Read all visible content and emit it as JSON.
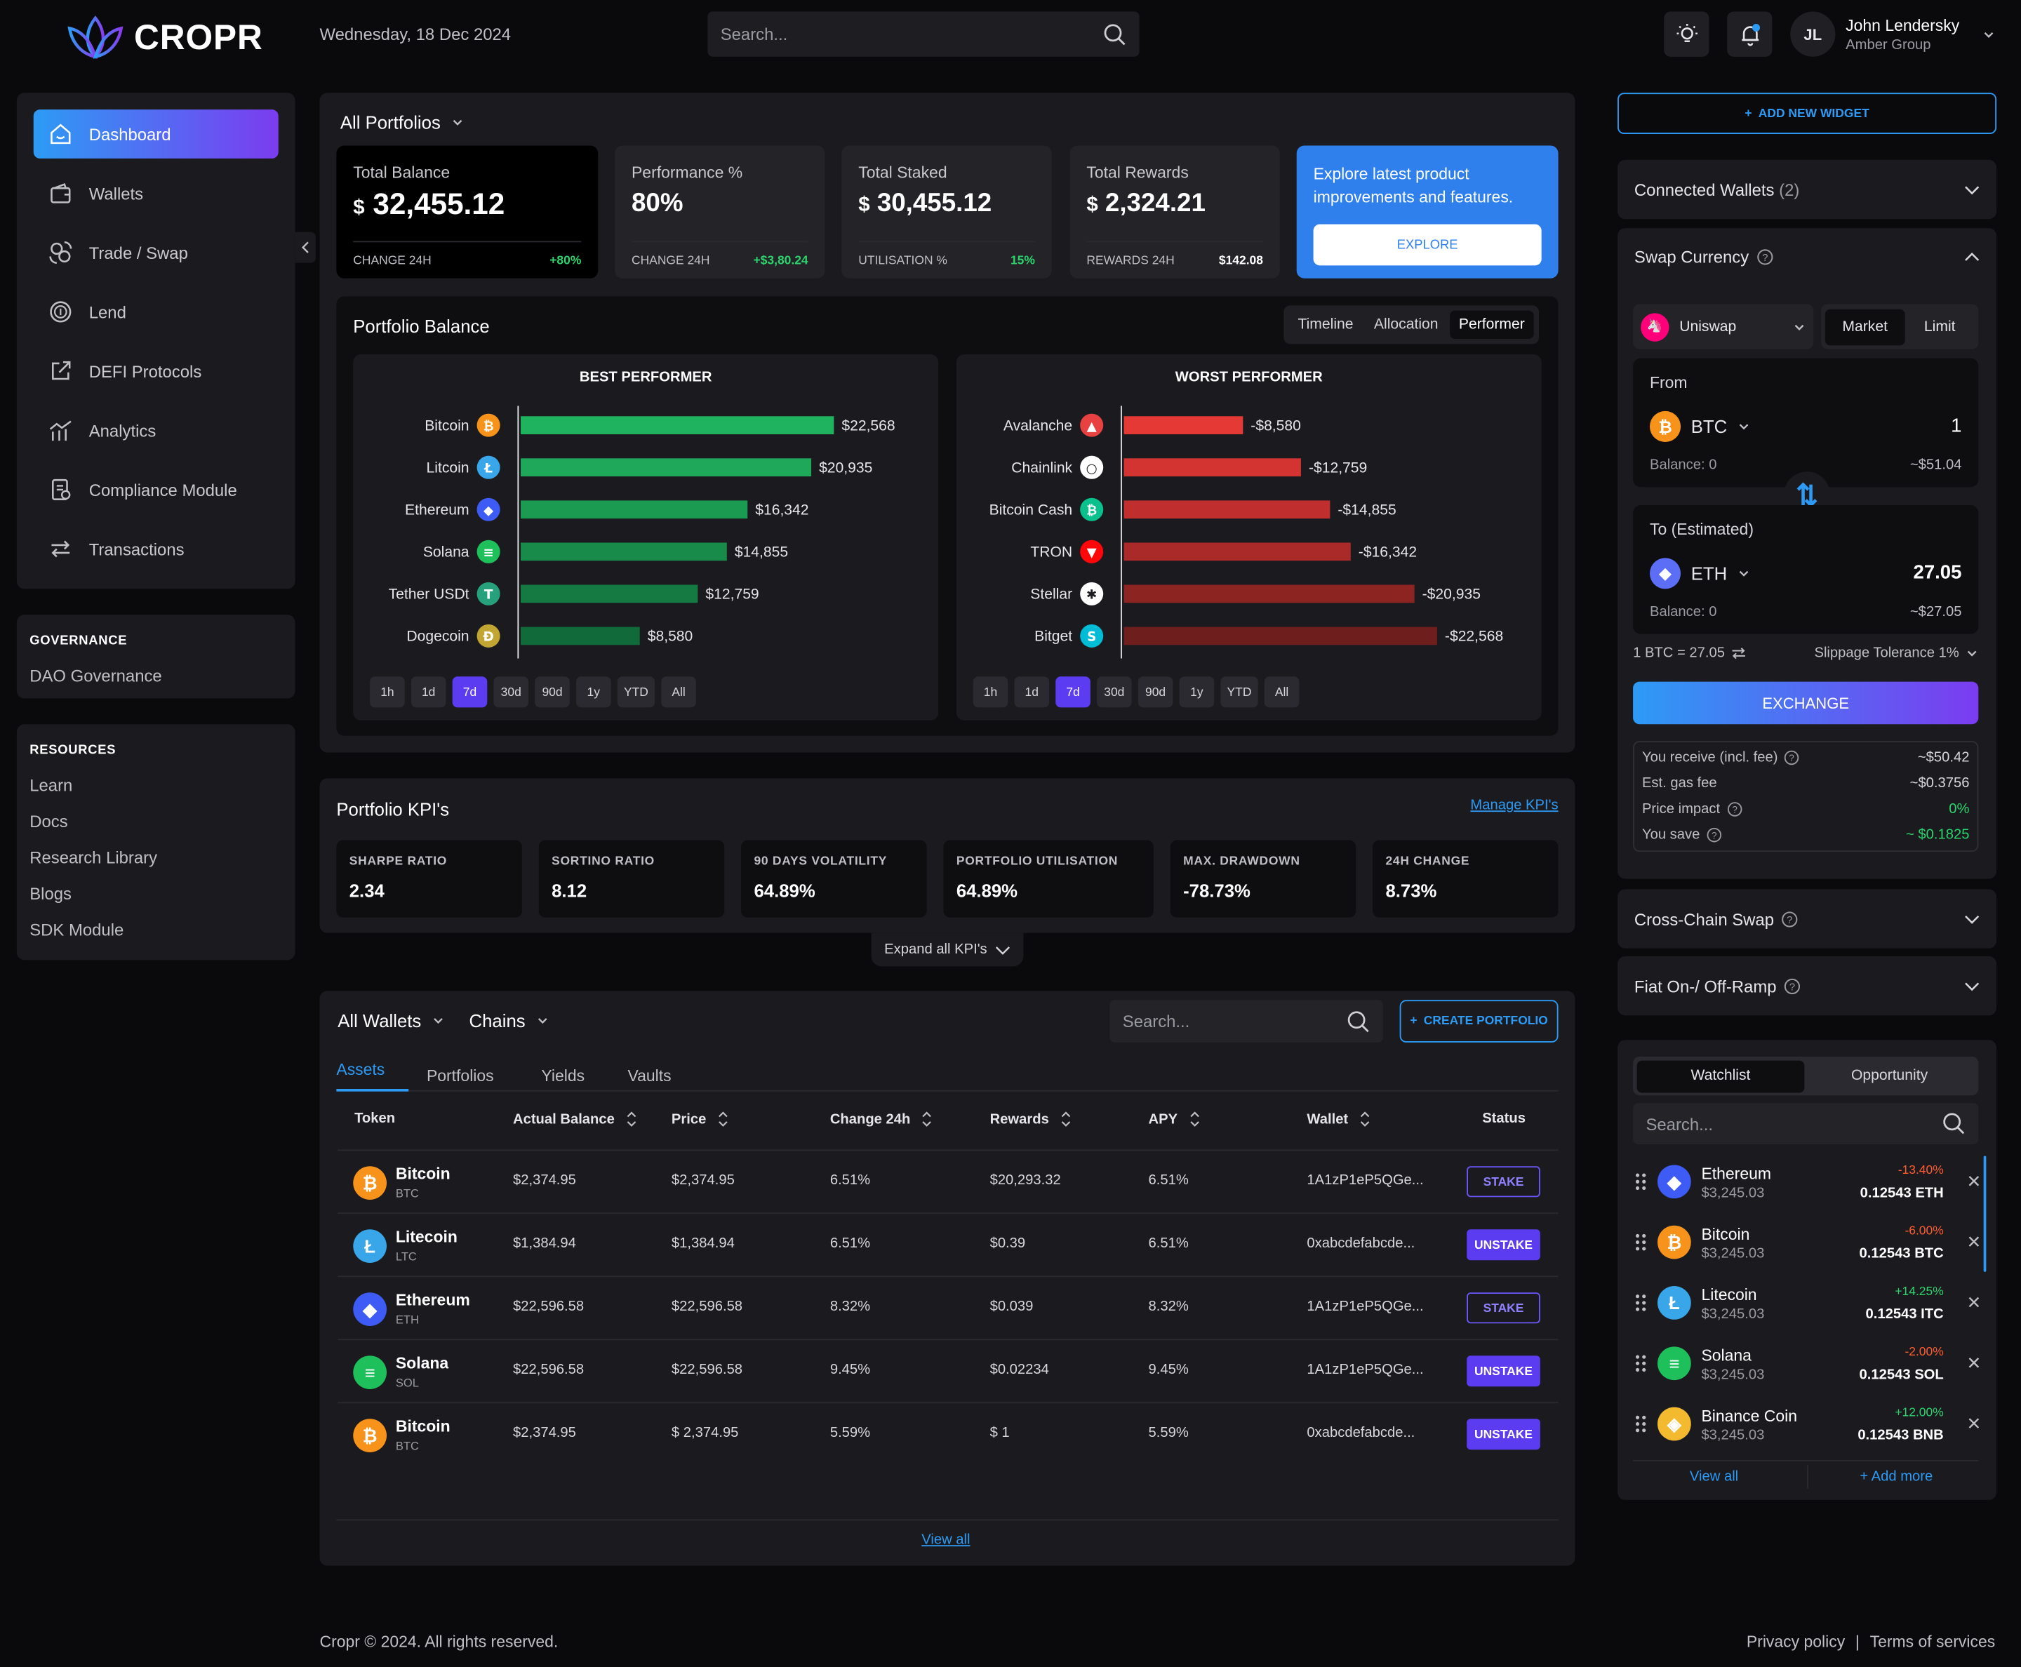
{
  "brand": {
    "name": "CROPR"
  },
  "header": {
    "date": "Wednesday, 18 Dec 2024",
    "search_placeholder": "Search...",
    "user": {
      "initials": "JL",
      "name": "John Lendersky",
      "org": "Amber Group"
    }
  },
  "sidebar": {
    "items": [
      {
        "label": "Dashboard",
        "icon": "home-icon"
      },
      {
        "label": "Wallets",
        "icon": "wallet-icon"
      },
      {
        "label": "Trade / Swap",
        "icon": "swap-icon"
      },
      {
        "label": "Lend",
        "icon": "lend-icon"
      },
      {
        "label": "DEFI Protocols",
        "icon": "external-icon"
      },
      {
        "label": "Analytics",
        "icon": "analytics-icon"
      },
      {
        "label": "Compliance Module",
        "icon": "compliance-icon"
      },
      {
        "label": "Transactions",
        "icon": "transactions-icon"
      }
    ],
    "governance": {
      "heading": "GOVERNANCE",
      "links": [
        "DAO Governance"
      ]
    },
    "resources": {
      "heading": "RESOURCES",
      "links": [
        "Learn",
        "Docs",
        "Research Library",
        "Blogs",
        "SDK Module"
      ]
    }
  },
  "portfolio": {
    "selector": "All Portfolios",
    "stats": [
      {
        "label": "Total Balance",
        "currency": "$",
        "value": "32,455.12",
        "foot_label": "CHANGE 24H",
        "foot_value": "+80%"
      },
      {
        "label": "Performance %",
        "currency": "",
        "value": "80%",
        "foot_label": "CHANGE 24H",
        "foot_value": "+$3,80.24"
      },
      {
        "label": "Total Staked",
        "currency": "$",
        "value": "30,455.12",
        "foot_label": "UTILISATION %",
        "foot_value": "15%"
      },
      {
        "label": "Total Rewards",
        "currency": "$",
        "value": "2,324.21",
        "foot_label": "REWARDS 24H",
        "foot_value": "$142.08"
      }
    ],
    "promo": {
      "text": "Explore latest product improvements and features.",
      "button": "EXPLORE"
    },
    "balance": {
      "title": "Portfolio Balance",
      "tabs": [
        "Timeline",
        "Allocation",
        "Performer"
      ],
      "active_tab": "Performer"
    },
    "timeframes": [
      "1h",
      "1d",
      "7d",
      "30d",
      "90d",
      "1y",
      "YTD",
      "All"
    ],
    "active_timeframe": "7d"
  },
  "chart_data": [
    {
      "type": "bar",
      "title": "BEST PERFORMER",
      "categories": [
        "Bitcoin",
        "Litcoin",
        "Ethereum",
        "Solana",
        "Tether USDt",
        "Dogecoin"
      ],
      "values": [
        22568,
        20935,
        16342,
        14855,
        12759,
        8580
      ],
      "labels": [
        "$22,568",
        "$20,935",
        "$16,342",
        "$14,855",
        "$12,759",
        "$8,580"
      ],
      "colors": [
        "#1fb35f",
        "#1fa85a",
        "#1b9a52",
        "#188a4a",
        "#147a42",
        "#106a3a"
      ]
    },
    {
      "type": "bar",
      "title": "WORST PERFORMER",
      "categories": [
        "Avalanche",
        "Chainlink",
        "Bitcoin Cash",
        "TRON",
        "Stellar",
        "Bitget"
      ],
      "values": [
        -8580,
        -12759,
        -14855,
        -16342,
        -20935,
        -22568
      ],
      "labels": [
        "-$8,580",
        "-$12,759",
        "-$14,855",
        "-$16,342",
        "-$20,935",
        "-$22,568"
      ],
      "colors": [
        "#e53935",
        "#d33432",
        "#c02f2d",
        "#a92a28",
        "#8c2422",
        "#6e1e1c"
      ]
    }
  ],
  "kpis": {
    "title": "Portfolio KPI's",
    "manage": "Manage KPI's",
    "expand": "Expand all KPI's",
    "items": [
      {
        "label": "SHARPE RATIO",
        "value": "2.34"
      },
      {
        "label": "SORTINO RATIO",
        "value": "8.12"
      },
      {
        "label": "90 DAYS VOLATILITY",
        "value": "64.89%"
      },
      {
        "label": "PORTFOLIO UTILISATION",
        "value": "64.89%"
      },
      {
        "label": "MAX. DRAWDOWN",
        "value": "-78.73%"
      },
      {
        "label": "24H CHANGE",
        "value": "8.73%"
      }
    ]
  },
  "wallets": {
    "selector": "All Wallets",
    "chains": "Chains",
    "search_placeholder": "Search...",
    "create": "CREATE PORTFOLIO",
    "tabs": [
      "Assets",
      "Portfolios",
      "Yields",
      "Vaults"
    ],
    "columns": [
      "Token",
      "Actual Balance",
      "Price",
      "Change 24h",
      "Rewards",
      "APY",
      "Wallet",
      "Status"
    ],
    "rows": [
      {
        "name": "Bitcoin",
        "sym": "BTC",
        "balance": "$2,374.95",
        "price": "$2,374.95",
        "change": "6.51%",
        "rewards": "$20,293.32",
        "apy": "6.51%",
        "wallet": "1A1zP1eP5QGe...",
        "status": "STAKE"
      },
      {
        "name": "Litecoin",
        "sym": "LTC",
        "balance": "$1,384.94",
        "price": "$1,384.94",
        "change": "6.51%",
        "rewards": "$0.39",
        "apy": "6.51%",
        "wallet": "0xabcdefabcde...",
        "status": "UNSTAKE"
      },
      {
        "name": "Ethereum",
        "sym": "ETH",
        "balance": "$22,596.58",
        "price": "$22,596.58",
        "change": "8.32%",
        "rewards": "$0.039",
        "apy": "8.32%",
        "wallet": "1A1zP1eP5QGe...",
        "status": "STAKE"
      },
      {
        "name": "Solana",
        "sym": "SOL",
        "balance": "$22,596.58",
        "price": "$22,596.58",
        "change": "9.45%",
        "rewards": "$0.02234",
        "apy": "9.45%",
        "wallet": "1A1zP1eP5QGe...",
        "status": "UNSTAKE"
      },
      {
        "name": "Bitcoin",
        "sym": "BTC",
        "balance": "$2,374.95",
        "price": "$ 2,374.95",
        "change": "5.59%",
        "rewards": "$ 1",
        "apy": "5.59%",
        "wallet": "0xabcdefabcde...",
        "status": "UNSTAKE"
      }
    ],
    "view_all": "View all"
  },
  "right": {
    "add_widget": "ADD NEW WIDGET",
    "connected": {
      "label": "Connected Wallets",
      "count": "(2)"
    },
    "swap": {
      "title": "Swap Currency",
      "dex": "Uniswap",
      "modes": [
        "Market",
        "Limit"
      ],
      "active_mode": "Market",
      "from": {
        "label": "From",
        "token": "BTC",
        "amount": "1",
        "balance": "Balance: 0",
        "usd": "~$51.04"
      },
      "to": {
        "label": "To (Estimated)",
        "token": "ETH",
        "amount": "27.05",
        "balance": "Balance: 0",
        "usd": "~$27.05"
      },
      "rate": "1 BTC = 27.05",
      "slippage": "Slippage Tolerance 1%",
      "button": "EXCHANGE",
      "details": [
        {
          "label": "You receive (incl. fee)",
          "value": "~$50.42",
          "color": "#d6d6dc"
        },
        {
          "label": "Est. gas fee",
          "value": "~$0.3756",
          "color": "#d6d6dc"
        },
        {
          "label": "Price impact",
          "value": "0%",
          "color": "#2bd46c"
        },
        {
          "label": "You save",
          "value": "~ $0.1825",
          "color": "#2bd46c"
        }
      ]
    },
    "cross_chain": "Cross-Chain Swap",
    "fiat": "Fiat On-/ Off-Ramp",
    "watchlist": {
      "tabs": [
        "Watchlist",
        "Opportunity"
      ],
      "active": "Watchlist",
      "search_placeholder": "Search...",
      "items": [
        {
          "name": "Ethereum",
          "price": "$3,245.03",
          "change": "-13.40%",
          "amount": "0.12543 ETH"
        },
        {
          "name": "Bitcoin",
          "price": "$3,245.03",
          "change": "-6.00%",
          "amount": "0.12543 BTC"
        },
        {
          "name": "Litecoin",
          "price": "$3,245.03",
          "change": "+14.25%",
          "amount": "0.12543 ITC"
        },
        {
          "name": "Solana",
          "price": "$3,245.03",
          "change": "-2.00%",
          "amount": "0.12543 SOL"
        },
        {
          "name": "Binance Coin",
          "price": "$3,245.03",
          "change": "+12.00%",
          "amount": "0.12543 BNB"
        }
      ],
      "view_all": "View all",
      "add_more": "+ Add more"
    }
  },
  "footer": {
    "copyright": "Cropr © 2024. All rights reserved.",
    "privacy": "Privacy policy",
    "separator": "|",
    "terms": "Terms of services"
  }
}
